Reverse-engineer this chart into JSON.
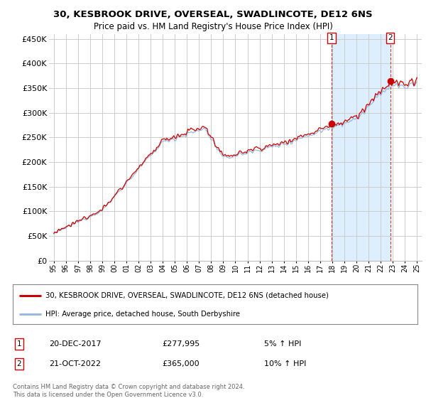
{
  "title": "30, KESBROOK DRIVE, OVERSEAL, SWADLINCOTE, DE12 6NS",
  "subtitle": "Price paid vs. HM Land Registry's House Price Index (HPI)",
  "ylabel_ticks": [
    "£0",
    "£50K",
    "£100K",
    "£150K",
    "£200K",
    "£250K",
    "£300K",
    "£350K",
    "£400K",
    "£450K"
  ],
  "ylabel_values": [
    0,
    50000,
    100000,
    150000,
    200000,
    250000,
    300000,
    350000,
    400000,
    450000
  ],
  "ylim": [
    0,
    460000
  ],
  "background_color": "#ffffff",
  "plot_bg_color": "#ffffff",
  "grid_color": "#cccccc",
  "red_line_color": "#cc0000",
  "blue_line_color": "#99bbdd",
  "highlight_bg_color": "#ddeeff",
  "marker1_year_float": 2017.96,
  "marker1_price": 277995,
  "marker2_year_float": 2022.79,
  "marker2_price": 365000,
  "marker1_date": "20-DEC-2017",
  "marker1_hpi": "5% ↑ HPI",
  "marker2_date": "21-OCT-2022",
  "marker2_hpi": "10% ↑ HPI",
  "legend_line1": "30, KESBROOK DRIVE, OVERSEAL, SWADLINCOTE, DE12 6NS (detached house)",
  "legend_line2": "HPI: Average price, detached house, South Derbyshire",
  "footnote": "Contains HM Land Registry data © Crown copyright and database right 2024.\nThis data is licensed under the Open Government Licence v3.0.",
  "xstart_year": 1995,
  "xend_year": 2025
}
